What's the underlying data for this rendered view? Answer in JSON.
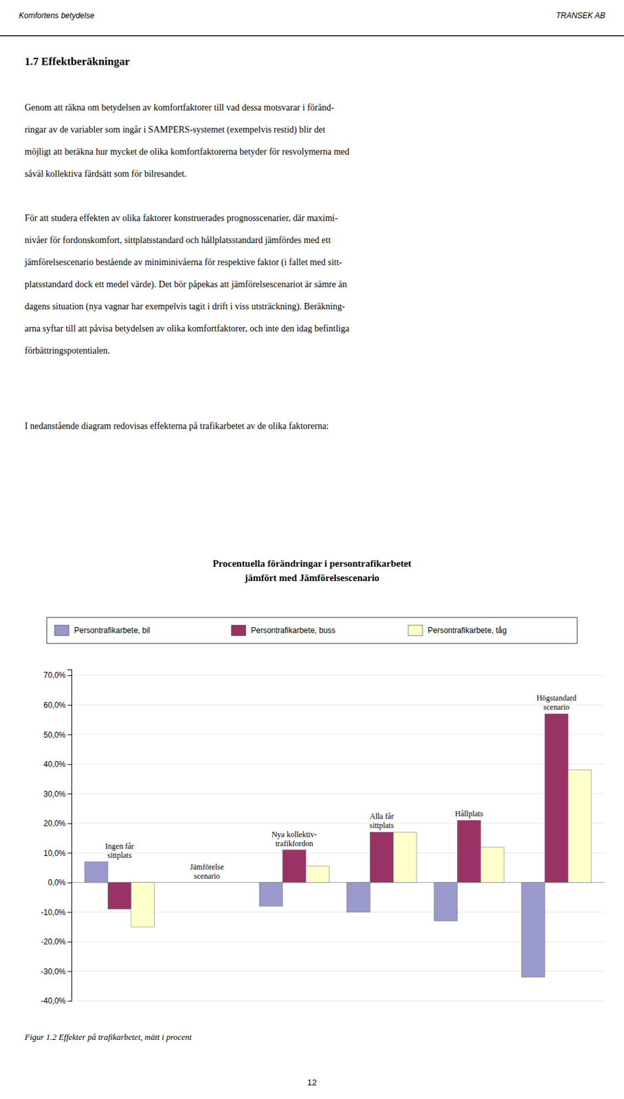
{
  "chart_data": {
    "type": "bar",
    "title": "Procentuella förändringar i persontrafikarbetet\njämfört med Jämförelsescenario",
    "categories": [
      "Ingen får\nsittplats",
      "Jämförelse\nscenario",
      "Nya kollektiv-\ntrafikfordon",
      "Alla får\nsittplats",
      "Hållplats",
      "Högstandard\nscenario"
    ],
    "series": [
      {
        "name": "Persontrafikarbete, bil",
        "color": "#9999cc",
        "values": [
          0.07,
          0.0,
          -0.08,
          -0.1,
          -0.13,
          -0.32
        ]
      },
      {
        "name": "Persontrafikarbete, buss",
        "color": "#993366",
        "values": [
          -0.09,
          0.0,
          0.11,
          0.17,
          0.21,
          0.57
        ]
      },
      {
        "name": "Persontrafikarbete, tåg",
        "color": "#ffffcc",
        "values": [
          -0.15,
          0.0,
          0.055,
          0.17,
          0.12,
          0.38
        ]
      }
    ],
    "ylim": [
      -0.4,
      0.72
    ],
    "yticks": [
      {
        "value": -0.4,
        "label": "-40,0%"
      },
      {
        "value": -0.3,
        "label": "-30,0%"
      },
      {
        "value": -0.2,
        "label": "-20,0%"
      },
      {
        "value": -0.1,
        "label": "-10,0%"
      },
      {
        "value": 0.0,
        "label": "0,0%"
      },
      {
        "value": 0.1,
        "label": "10,0%"
      },
      {
        "value": 0.2,
        "label": "20,0%"
      },
      {
        "value": 0.3,
        "label": "30,0%"
      },
      {
        "value": 0.4,
        "label": "40,0%"
      },
      {
        "value": 0.5,
        "label": "50,0%"
      },
      {
        "value": 0.6,
        "label": "60,0%"
      },
      {
        "value": 0.7,
        "label": "70,0%"
      }
    ],
    "grid": true,
    "legend": "top"
  },
  "page": {
    "header_left": "Komfortens betydelse",
    "header_right": "TRANSEK AB",
    "section_title": "1.7   Effektberäkningar",
    "paragraphs": [
      [
        "Genom att räkna om betydelsen av komfortfaktorer till vad dessa motsvarar i föränd-",
        "ringar av de variabler som ingår i SAMPERS-systemet (exempelvis restid) blir det",
        "möjligt att beräkna hur mycket de olika komfortfaktorerna betyder för resvolymerna med",
        "såväl kollektiva färdsätt som för bilresandet."
      ],
      [
        "För att studera effekten av olika faktorer konstruerades prognosscenarier, där maximi-",
        "nivåer för fordonskomfort, sittplatsstandard och hållplatsstandard jämfördes med ett",
        "jämförelsescenario bestående av miniminivåerna för respektive faktor (i fallet med sitt-",
        "platsstandard dock ett medel värde). Det bör påpekas att jämförelsescenariot är sämre än",
        "dagens situation (nya vagnar har exempelvis tagit i drift i viss utsträckning). Beräkning-",
        "arna syftar till att påvisa betydelsen av olika komfortfaktorer, och inte den idag befintliga",
        "förbättringspotentialen."
      ],
      [
        "I nedanstående diagram redovisas effekterna på trafikarbetet av de olika faktorerna:"
      ]
    ],
    "figure_caption": "Figur 1.2 Effekter på trafikarbetet, mätt i procent",
    "page_number": "12"
  }
}
